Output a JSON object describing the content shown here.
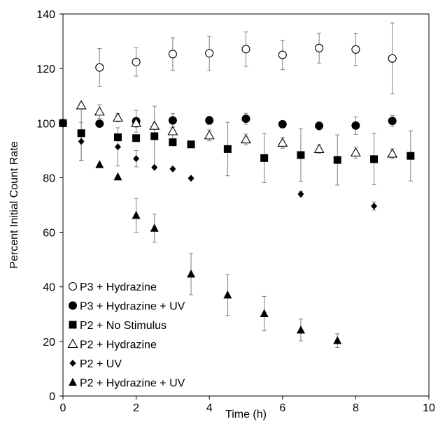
{
  "chart_data": {
    "type": "scatter",
    "title": "",
    "xlabel": "Time (h)",
    "ylabel": "Percent Initial Count Rate",
    "xlim": [
      0,
      10
    ],
    "ylim": [
      0,
      140
    ],
    "xticks": [
      "0",
      "2",
      "4",
      "6",
      "8",
      "10"
    ],
    "yticks": [
      "0",
      "20",
      "40",
      "60",
      "80",
      "100",
      "120",
      "140"
    ],
    "grid": false,
    "legend_position": "bottom-left",
    "series": [
      {
        "name": "P3 + Hydrazine",
        "marker": "circle-open",
        "points": [
          {
            "x": 1.0,
            "y": 120.4,
            "err": 6.9
          },
          {
            "x": 2.0,
            "y": 122.4,
            "err": 5.2
          },
          {
            "x": 3.0,
            "y": 125.3,
            "err": 6.0
          },
          {
            "x": 4.0,
            "y": 125.6,
            "err": 6.2
          },
          {
            "x": 5.0,
            "y": 127.1,
            "err": 6.3
          },
          {
            "x": 6.0,
            "y": 125.0,
            "err": 5.4
          },
          {
            "x": 7.0,
            "y": 127.5,
            "err": 5.5
          },
          {
            "x": 8.0,
            "y": 127.0,
            "err": 5.9
          },
          {
            "x": 9.0,
            "y": 123.7,
            "err": 13.0
          }
        ]
      },
      {
        "name": "P3 + Hydrazine + UV",
        "marker": "circle-filled",
        "points": [
          {
            "x": 0.0,
            "y": 100.0,
            "err": 0
          },
          {
            "x": 1.0,
            "y": 99.8,
            "err": 0
          },
          {
            "x": 2.0,
            "y": 100.7,
            "err": 4.0
          },
          {
            "x": 3.0,
            "y": 101.0,
            "err": 2.5
          },
          {
            "x": 4.0,
            "y": 101.0,
            "err": 1.5
          },
          {
            "x": 5.0,
            "y": 101.6,
            "err": 2.0
          },
          {
            "x": 6.0,
            "y": 99.6,
            "err": 0
          },
          {
            "x": 7.0,
            "y": 99.0,
            "err": 1.5
          },
          {
            "x": 8.0,
            "y": 99.1,
            "err": 3.2
          },
          {
            "x": 9.0,
            "y": 100.8,
            "err": 2.0
          }
        ]
      },
      {
        "name": "P2 + No Stimulus",
        "marker": "square-filled",
        "points": [
          {
            "x": 0.0,
            "y": 100.0,
            "err": 0
          },
          {
            "x": 0.5,
            "y": 96.3,
            "err": 10.0
          },
          {
            "x": 1.5,
            "y": 94.8,
            "err": 0
          },
          {
            "x": 2.0,
            "y": 94.5,
            "err": 0
          },
          {
            "x": 2.5,
            "y": 95.2,
            "err": 11.0
          },
          {
            "x": 3.0,
            "y": 93.0,
            "err": 0
          },
          {
            "x": 3.5,
            "y": 92.2,
            "err": 0
          },
          {
            "x": 4.5,
            "y": 90.5,
            "err": 9.8
          },
          {
            "x": 5.5,
            "y": 87.2,
            "err": 9.0
          },
          {
            "x": 6.5,
            "y": 88.3,
            "err": 9.6
          },
          {
            "x": 7.5,
            "y": 86.5,
            "err": 9.2
          },
          {
            "x": 8.5,
            "y": 86.8,
            "err": 9.4
          },
          {
            "x": 9.5,
            "y": 88.0,
            "err": 9.2
          }
        ]
      },
      {
        "name": "P2 + Hydrazine",
        "marker": "triangle-open",
        "points": [
          {
            "x": 0.5,
            "y": 106.5,
            "err": 1.0
          },
          {
            "x": 1.0,
            "y": 104.2,
            "err": 2.5
          },
          {
            "x": 1.5,
            "y": 102.0,
            "err": 1.5
          },
          {
            "x": 2.0,
            "y": 100.0,
            "err": 1.5
          },
          {
            "x": 2.5,
            "y": 99.0,
            "err": 1.0
          },
          {
            "x": 3.0,
            "y": 97.0,
            "err": 4.5
          },
          {
            "x": 4.0,
            "y": 95.5,
            "err": 2.0
          },
          {
            "x": 5.0,
            "y": 94.0,
            "err": 2.0
          },
          {
            "x": 6.0,
            "y": 92.8,
            "err": 2.0
          },
          {
            "x": 7.0,
            "y": 90.5,
            "err": 1.5
          },
          {
            "x": 8.0,
            "y": 89.2,
            "err": 2.0
          },
          {
            "x": 9.0,
            "y": 88.8,
            "err": 1.8
          }
        ]
      },
      {
        "name": "P2 + UV",
        "marker": "diamond-filled",
        "points": [
          {
            "x": 0.5,
            "y": 93.3,
            "err": 7.0
          },
          {
            "x": 1.5,
            "y": 91.3,
            "err": 7.0
          },
          {
            "x": 2.0,
            "y": 87.0,
            "err": 3.0
          },
          {
            "x": 2.5,
            "y": 83.8,
            "err": 0
          },
          {
            "x": 3.0,
            "y": 83.2,
            "err": 0
          },
          {
            "x": 3.5,
            "y": 79.8,
            "err": 0
          },
          {
            "x": 6.5,
            "y": 74.0,
            "err": 1.0
          },
          {
            "x": 8.5,
            "y": 69.6,
            "err": 1.5
          }
        ]
      },
      {
        "name": "P2 + Hydrazine + UV",
        "marker": "triangle-filled",
        "points": [
          {
            "x": 0.0,
            "y": 100.0,
            "err": 0
          },
          {
            "x": 1.0,
            "y": 84.8,
            "err": 0
          },
          {
            "x": 1.5,
            "y": 80.3,
            "err": 0
          },
          {
            "x": 2.0,
            "y": 66.2,
            "err": 6.2
          },
          {
            "x": 2.5,
            "y": 61.5,
            "err": 5.2
          },
          {
            "x": 3.5,
            "y": 44.7,
            "err": 7.6
          },
          {
            "x": 4.5,
            "y": 37.0,
            "err": 7.5
          },
          {
            "x": 5.5,
            "y": 30.2,
            "err": 6.3
          },
          {
            "x": 6.5,
            "y": 24.2,
            "err": 4.0
          },
          {
            "x": 7.5,
            "y": 20.3,
            "err": 2.5
          }
        ]
      }
    ]
  }
}
